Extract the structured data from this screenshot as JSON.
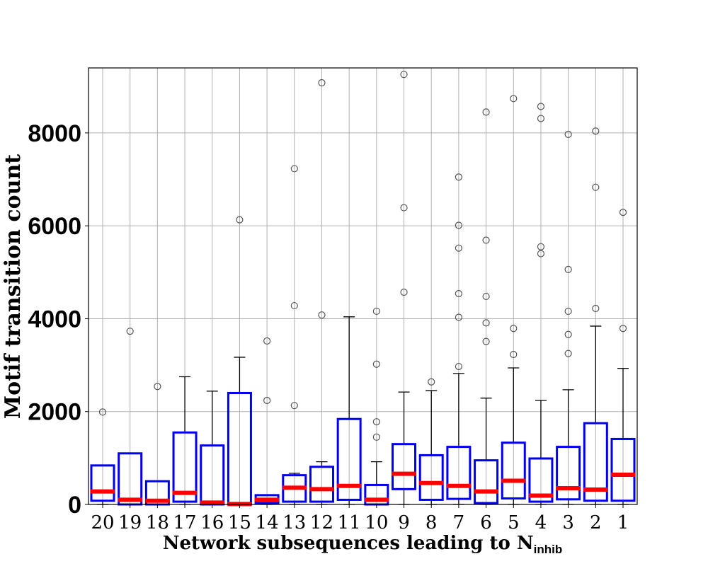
{
  "chart_data": {
    "type": "box",
    "xlabel": "Network subsequences leading to N",
    "xlabel_subscript": "inhib",
    "ylabel": "Motif transition count",
    "ylim": [
      0,
      9400
    ],
    "yticks": [
      0,
      2000,
      4000,
      6000,
      8000
    ],
    "grid": true,
    "categories": [
      "20",
      "19",
      "18",
      "17",
      "16",
      "15",
      "14",
      "13",
      "12",
      "11",
      "10",
      "9",
      "8",
      "7",
      "6",
      "5",
      "4",
      "3",
      "2",
      "1"
    ],
    "boxes": [
      {
        "q1": 80,
        "median": 280,
        "q3": 840,
        "whislo": 0,
        "whishi": 840,
        "fliers": [
          1990
        ]
      },
      {
        "q1": 0,
        "median": 100,
        "q3": 1100,
        "whislo": 0,
        "whishi": 1100,
        "fliers": [
          3730
        ]
      },
      {
        "q1": 0,
        "median": 80,
        "q3": 500,
        "whislo": 0,
        "whishi": 500,
        "fliers": [
          2540
        ]
      },
      {
        "q1": 60,
        "median": 250,
        "q3": 1550,
        "whislo": 0,
        "whishi": 2750,
        "fliers": []
      },
      {
        "q1": 0,
        "median": 40,
        "q3": 1270,
        "whislo": 0,
        "whishi": 2440,
        "fliers": []
      },
      {
        "q1": 0,
        "median": 10,
        "q3": 2400,
        "whislo": 0,
        "whishi": 3170,
        "fliers": [
          6130
        ]
      },
      {
        "q1": 30,
        "median": 100,
        "q3": 200,
        "whislo": 0,
        "whishi": 200,
        "fliers": [
          2240,
          3520
        ]
      },
      {
        "q1": 60,
        "median": 360,
        "q3": 630,
        "whislo": 0,
        "whishi": 670,
        "fliers": [
          2130,
          4280,
          7230
        ]
      },
      {
        "q1": 60,
        "median": 330,
        "q3": 810,
        "whislo": 0,
        "whishi": 920,
        "fliers": [
          4080,
          9080
        ]
      },
      {
        "q1": 100,
        "median": 400,
        "q3": 1840,
        "whislo": 0,
        "whishi": 4040,
        "fliers": []
      },
      {
        "q1": 0,
        "median": 100,
        "q3": 420,
        "whislo": 0,
        "whishi": 920,
        "fliers": [
          1450,
          1780,
          3020,
          4160
        ]
      },
      {
        "q1": 330,
        "median": 660,
        "q3": 1300,
        "whislo": 0,
        "whishi": 2420,
        "fliers": [
          4570,
          6390,
          9260
        ]
      },
      {
        "q1": 100,
        "median": 460,
        "q3": 1060,
        "whislo": 0,
        "whishi": 2450,
        "fliers": [
          2640
        ]
      },
      {
        "q1": 120,
        "median": 400,
        "q3": 1240,
        "whislo": 0,
        "whishi": 2820,
        "fliers": [
          2970,
          4030,
          4540,
          5520,
          6010,
          7050
        ]
      },
      {
        "q1": 30,
        "median": 280,
        "q3": 950,
        "whislo": 0,
        "whishi": 2290,
        "fliers": [
          3510,
          3910,
          4480,
          5690,
          8450
        ]
      },
      {
        "q1": 130,
        "median": 510,
        "q3": 1330,
        "whislo": 0,
        "whishi": 2940,
        "fliers": [
          3230,
          3790,
          8740
        ]
      },
      {
        "q1": 60,
        "median": 190,
        "q3": 990,
        "whislo": 0,
        "whishi": 2240,
        "fliers": [
          5400,
          5550,
          8310,
          8570
        ]
      },
      {
        "q1": 110,
        "median": 350,
        "q3": 1240,
        "whislo": 0,
        "whishi": 2470,
        "fliers": [
          3250,
          3660,
          4160,
          5060,
          7970
        ]
      },
      {
        "q1": 80,
        "median": 320,
        "q3": 1750,
        "whislo": 0,
        "whishi": 3840,
        "fliers": [
          4220,
          6830,
          8040
        ]
      },
      {
        "q1": 80,
        "median": 640,
        "q3": 1410,
        "whislo": 0,
        "whishi": 2930,
        "fliers": [
          3790,
          6290
        ]
      }
    ],
    "colors": {
      "box": "#0000ee",
      "median": "#ff0000",
      "whisker": "#000000",
      "flier": "#555555",
      "grid": "#b0b0b0"
    }
  }
}
